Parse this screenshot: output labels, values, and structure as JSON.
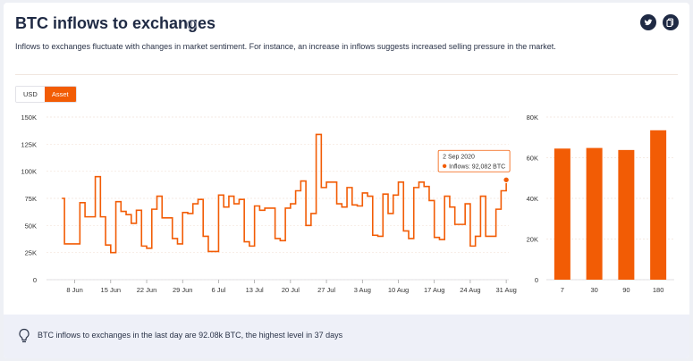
{
  "header": {
    "title": "BTC inflows to exchanges",
    "info_icon": "info-icon",
    "share_icons": [
      "twitter-icon",
      "copy-icon"
    ]
  },
  "description": "Inflows to exchanges fluctuate with changes in market sentiment. For instance, an increase in inflows suggests increased selling pressure in the market.",
  "toggle": {
    "options": [
      "USD",
      "Asset"
    ],
    "selected": "Asset"
  },
  "colors": {
    "accent": "#f25c05",
    "navy": "#1f2a44"
  },
  "chart_data": [
    {
      "type": "line",
      "step": true,
      "y_ticks": [
        "0",
        "25K",
        "50K",
        "75K",
        "100K",
        "125K",
        "150K"
      ],
      "ylim": [
        0,
        150000
      ],
      "x_ticks": [
        {
          "label": "8 Jun",
          "index": 5
        },
        {
          "label": "15 Jun",
          "index": 12
        },
        {
          "label": "22 Jun",
          "index": 19
        },
        {
          "label": "29 Jun",
          "index": 26
        },
        {
          "label": "6 Jul",
          "index": 33
        },
        {
          "label": "13 Jul",
          "index": 40
        },
        {
          "label": "20 Jul",
          "index": 47
        },
        {
          "label": "27 Jul",
          "index": 54
        },
        {
          "label": "3 Aug",
          "index": 61
        },
        {
          "label": "10 Aug",
          "index": 68
        },
        {
          "label": "17 Aug",
          "index": 75
        },
        {
          "label": "24 Aug",
          "index": 82
        },
        {
          "label": "31 Aug",
          "index": 89
        }
      ],
      "series": [
        {
          "values": [
            75000,
            33000,
            33000,
            71000,
            58000,
            58000,
            95000,
            58000,
            32000,
            25000,
            72000,
            63000,
            60000,
            52000,
            64000,
            31000,
            29000,
            65000,
            77000,
            57000,
            57000,
            38000,
            33000,
            62000,
            61000,
            70000,
            74000,
            40000,
            26000,
            26000,
            78000,
            67000,
            77000,
            70000,
            74000,
            35000,
            31000,
            68000,
            64000,
            66000,
            66000,
            38000,
            36000,
            66000,
            70000,
            82000,
            91000,
            50000,
            61000,
            134000,
            85000,
            90000,
            90000,
            70000,
            67000,
            85000,
            69000,
            68000,
            80000,
            77000,
            41000,
            40000,
            79000,
            61000,
            78000,
            90000,
            45000,
            38000,
            85000,
            90000,
            86000,
            73000,
            39000,
            37000,
            77000,
            67000,
            51000,
            51000,
            70000,
            31000,
            40000,
            77000,
            40000,
            40000,
            65000,
            82000,
            92082
          ],
          "start_index": 3
        }
      ],
      "tooltip": {
        "date": "2 Sep 2020",
        "label": "Inflows: 92,082 BTC",
        "value": 92082
      }
    },
    {
      "type": "bar",
      "categories": [
        "7",
        "30",
        "90",
        "180"
      ],
      "values": [
        64500,
        64800,
        63800,
        73500
      ],
      "y_ticks": [
        "0",
        "20K",
        "40K",
        "60K",
        "80K"
      ],
      "ylim": [
        0,
        80000
      ]
    }
  ],
  "footer": {
    "insight": "BTC inflows to exchanges in the last day are 92.08k BTC, the highest level in 37 days",
    "icon": "lightbulb-icon"
  }
}
